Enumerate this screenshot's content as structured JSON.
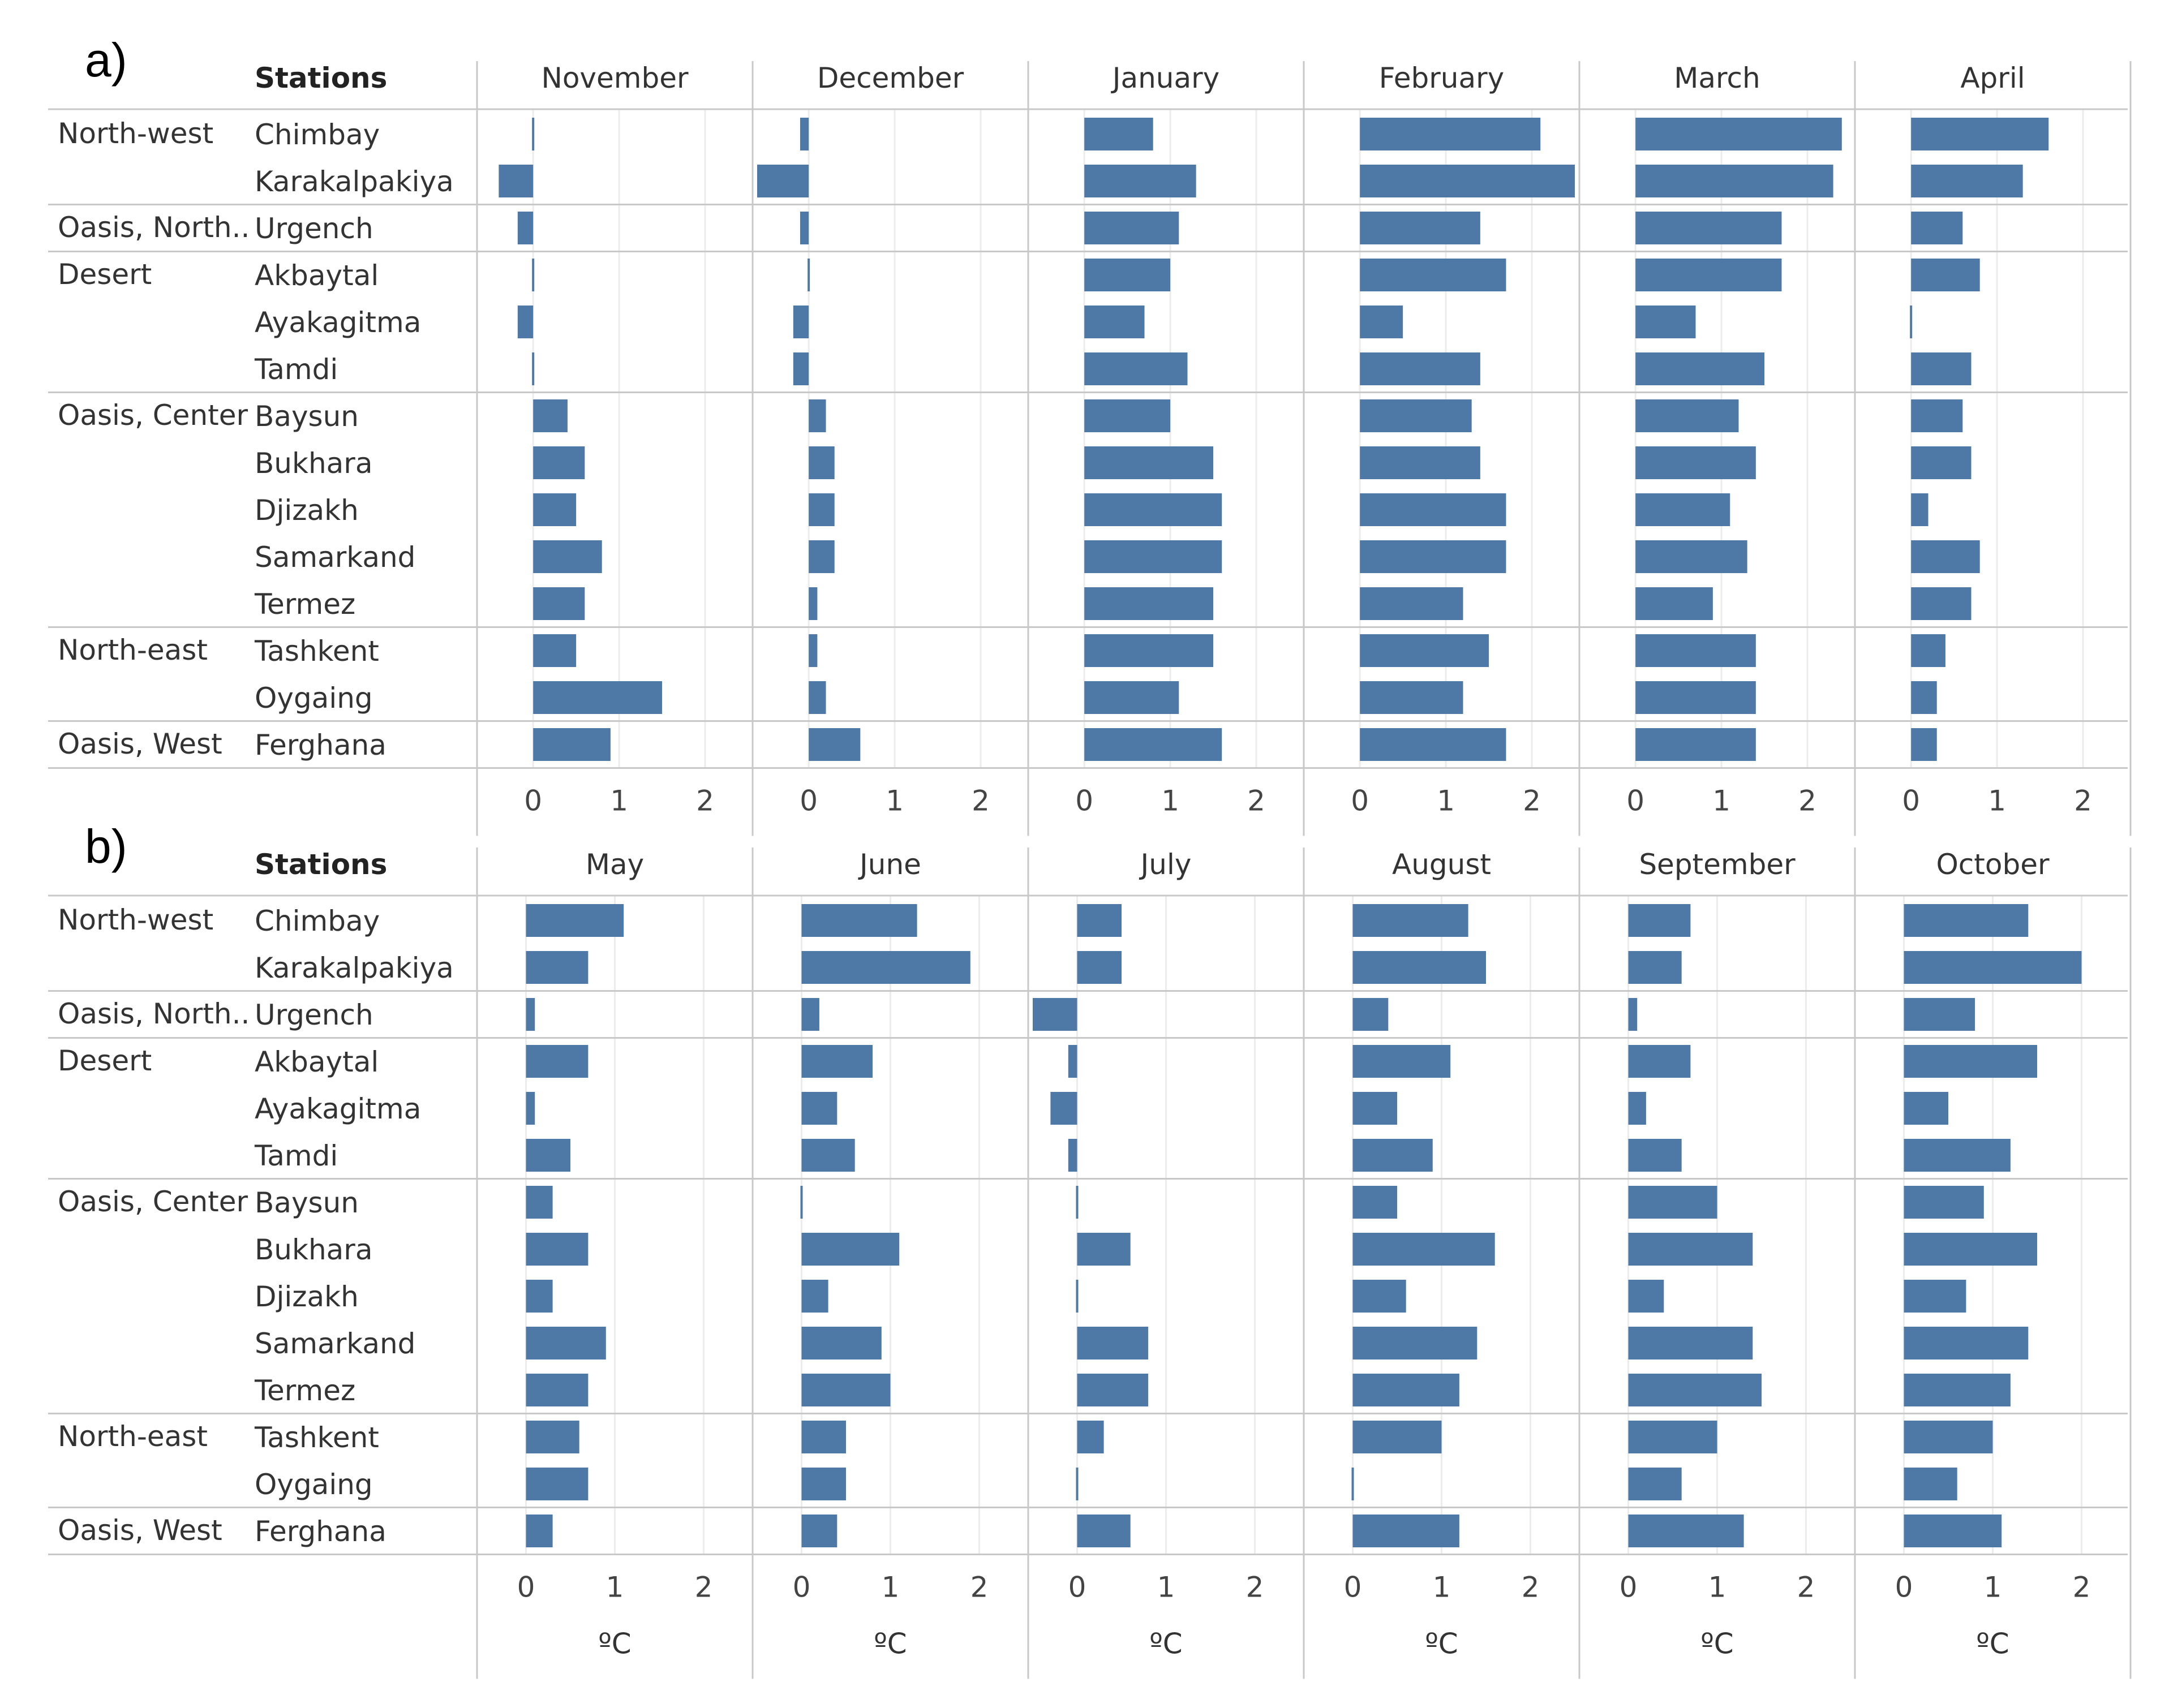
{
  "chart_data": [
    {
      "type": "bar",
      "panel_label": "a)",
      "header": "Stations",
      "regions": [
        {
          "name": "North-west",
          "stations": [
            "Chimbay",
            "Karakalpakiya"
          ]
        },
        {
          "name": "Oasis, North..",
          "stations": [
            "Urgench"
          ]
        },
        {
          "name": "Desert",
          "stations": [
            "Akbaytal",
            "Ayakagitma",
            "Tamdi"
          ]
        },
        {
          "name": "Oasis, Center",
          "stations": [
            "Baysun",
            "Bukhara",
            "Djizakh",
            "Samarkand",
            "Termez"
          ]
        },
        {
          "name": "North-east",
          "stations": [
            "Tashkent",
            "Oygaing"
          ]
        },
        {
          "name": "Oasis, West",
          "stations": [
            "Ferghana"
          ]
        }
      ],
      "xlim": [
        -0.6,
        2.5
      ],
      "xticks": [
        "0",
        "1",
        "2"
      ],
      "unit": "",
      "series": [
        {
          "name": "November",
          "values": [
            0.02,
            -0.4,
            -0.18,
            0.02,
            -0.18,
            0.02,
            0.4,
            0.6,
            0.5,
            0.8,
            0.6,
            0.5,
            1.5,
            0.9
          ]
        },
        {
          "name": "December",
          "values": [
            -0.1,
            -0.6,
            -0.1,
            0.02,
            -0.18,
            -0.18,
            0.2,
            0.3,
            0.3,
            0.3,
            0.1,
            0.1,
            0.2,
            0.6
          ]
        },
        {
          "name": "January",
          "values": [
            0.8,
            1.3,
            1.1,
            1.0,
            0.7,
            1.2,
            1.0,
            1.5,
            1.6,
            1.6,
            1.5,
            1.5,
            1.1,
            1.6
          ]
        },
        {
          "name": "February",
          "values": [
            2.1,
            2.5,
            1.4,
            1.7,
            0.5,
            1.4,
            1.3,
            1.4,
            1.7,
            1.7,
            1.2,
            1.5,
            1.2,
            1.7
          ]
        },
        {
          "name": "March",
          "values": [
            2.4,
            2.3,
            1.7,
            1.7,
            0.7,
            1.5,
            1.2,
            1.4,
            1.1,
            1.3,
            0.9,
            1.4,
            1.4,
            1.4
          ]
        },
        {
          "name": "April",
          "values": [
            1.6,
            1.3,
            0.6,
            0.8,
            0.02,
            0.7,
            0.6,
            0.7,
            0.2,
            0.8,
            0.7,
            0.4,
            0.3,
            0.3
          ]
        }
      ]
    },
    {
      "type": "bar",
      "panel_label": "b)",
      "header": "Stations",
      "regions": [
        {
          "name": "North-west",
          "stations": [
            "Chimbay",
            "Karakalpakiya"
          ]
        },
        {
          "name": "Oasis, North..",
          "stations": [
            "Urgench"
          ]
        },
        {
          "name": "Desert",
          "stations": [
            "Akbaytal",
            "Ayakagitma",
            "Tamdi"
          ]
        },
        {
          "name": "Oasis, Center",
          "stations": [
            "Baysun",
            "Bukhara",
            "Djizakh",
            "Samarkand",
            "Termez"
          ]
        },
        {
          "name": "North-east",
          "stations": [
            "Tashkent",
            "Oygaing"
          ]
        },
        {
          "name": "Oasis, West",
          "stations": [
            "Ferghana"
          ]
        }
      ],
      "xlim": [
        -0.5,
        2.5
      ],
      "xticks": [
        "0",
        "1",
        "2"
      ],
      "unit": "ºC",
      "series": [
        {
          "name": "May",
          "values": [
            1.1,
            0.7,
            0.1,
            0.7,
            0.1,
            0.5,
            0.3,
            0.7,
            0.3,
            0.9,
            0.7,
            0.6,
            0.7,
            0.3
          ]
        },
        {
          "name": "June",
          "values": [
            1.3,
            1.9,
            0.2,
            0.8,
            0.4,
            0.6,
            0.02,
            1.1,
            0.3,
            0.9,
            1.0,
            0.5,
            0.5,
            0.4
          ]
        },
        {
          "name": "July",
          "values": [
            0.5,
            0.5,
            -0.5,
            -0.1,
            -0.3,
            -0.1,
            0.02,
            0.6,
            0.02,
            0.8,
            0.8,
            0.3,
            0.02,
            0.6
          ]
        },
        {
          "name": "August",
          "values": [
            1.3,
            1.5,
            0.4,
            1.1,
            0.5,
            0.9,
            0.5,
            1.6,
            0.6,
            1.4,
            1.2,
            1.0,
            0.02,
            1.2
          ]
        },
        {
          "name": "September",
          "values": [
            0.7,
            0.6,
            0.1,
            0.7,
            0.2,
            0.6,
            1.0,
            1.4,
            0.4,
            1.4,
            1.5,
            1.0,
            0.6,
            1.3
          ]
        },
        {
          "name": "October",
          "values": [
            1.4,
            2.0,
            0.8,
            1.5,
            0.5,
            1.2,
            0.9,
            1.5,
            0.7,
            1.4,
            1.2,
            1.0,
            0.6,
            1.1
          ]
        }
      ]
    }
  ]
}
